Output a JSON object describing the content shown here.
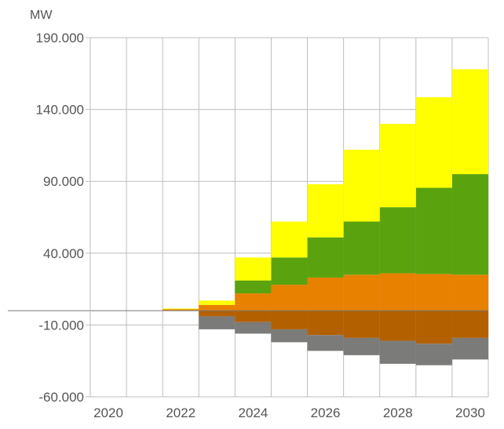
{
  "chart_data": {
    "type": "area",
    "unit_label": "MW",
    "x": [
      2020,
      2021,
      2022,
      2023,
      2024,
      2025,
      2026,
      2027,
      2028,
      2029,
      2030
    ],
    "x_tick_labels": [
      "2020",
      "2022",
      "2024",
      "2026",
      "2028",
      "2030"
    ],
    "y_tick_labels": [
      "190.000",
      "140.000",
      "90.000",
      "40.000",
      "-10.000",
      "-60.000"
    ],
    "ylim": [
      -60000,
      190000
    ],
    "grid": true,
    "stacked": true,
    "colors": {
      "orange": "#e88000",
      "green": "#5aa30f",
      "yellow": "#ffff00",
      "brown": "#b36000",
      "gray": "#7b7b79",
      "grid": "#bdbdbd",
      "baseline": "#777777"
    },
    "series_positive": [
      {
        "color": "orange",
        "values": [
          0,
          0,
          1000,
          4000,
          12000,
          18000,
          23000,
          25000,
          26000,
          25500,
          25000
        ]
      },
      {
        "color": "green",
        "values": [
          0,
          0,
          0,
          0,
          9000,
          19000,
          28000,
          37000,
          46000,
          60000,
          70000
        ]
      },
      {
        "color": "yellow",
        "values": [
          0,
          0,
          500,
          3000,
          16000,
          25000,
          37000,
          50000,
          58000,
          63000,
          73000
        ]
      }
    ],
    "series_negative": [
      {
        "color": "brown",
        "values": [
          0,
          0,
          0,
          -4000,
          -8000,
          -13000,
          -17000,
          -19000,
          -21000,
          -23000,
          -19000
        ]
      },
      {
        "color": "gray",
        "values": [
          0,
          0,
          0,
          -9000,
          -8000,
          -9000,
          -11000,
          -12000,
          -16000,
          -15000,
          -15000
        ]
      }
    ]
  }
}
